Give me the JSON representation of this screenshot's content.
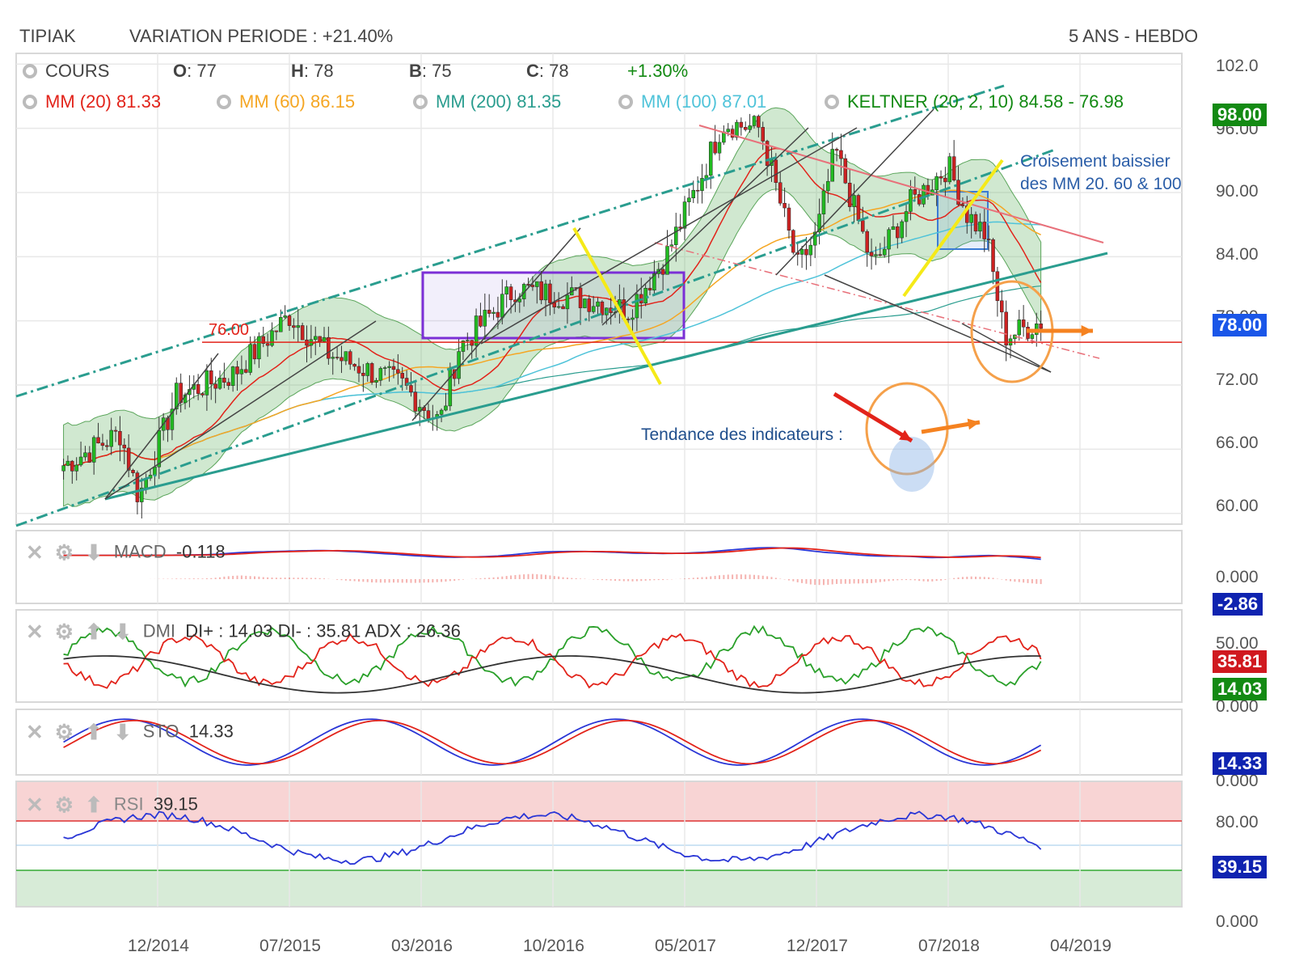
{
  "header": {
    "ticker": "TIPIAK",
    "variation": "VARIATION PERIODE : +21.40%",
    "period": "5 ANS - HEBDO"
  },
  "legend": {
    "cours_label": "COURS",
    "ohlc": [
      {
        "k": "O",
        "v": ": 77"
      },
      {
        "k": "H",
        "v": ": 78"
      },
      {
        "k": "B",
        "v": ": 75"
      },
      {
        "k": "C",
        "v": ": 78"
      }
    ],
    "change": "+1.30%",
    "indicators": [
      {
        "label": "MM (20) 81.33",
        "color": "#e2231a"
      },
      {
        "label": "MM (60) 86.15",
        "color": "#f5a623"
      },
      {
        "label": "MM (200) 81.35",
        "color": "#2a9d8f"
      },
      {
        "label": "MM (100) 87.01",
        "color": "#4fc3d9"
      },
      {
        "label": "KELTNER (20, 2, 10) 84.58 - 76.98",
        "color": "#138a13"
      }
    ]
  },
  "annotations": {
    "support_label": "76.00",
    "crossing_line1": "Croisement baissier",
    "crossing_line2": "des MM 20. 60 & 100",
    "trend_label": "Tendance des indicateurs :"
  },
  "panels": {
    "macd": {
      "name": "MACD",
      "value": "-0.118",
      "badge": "-2.86"
    },
    "dmi": {
      "name": "DMI",
      "value": "DI+ : 14.03 DI- : 35.81 ADX : 26.36",
      "badge_minus": "35.81",
      "badge_plus": "14.03"
    },
    "sto": {
      "name": "STO",
      "value": "14.33",
      "badge": "14.33"
    },
    "rsi": {
      "name": "RSI",
      "value": "39.15",
      "badge": "39.15"
    }
  },
  "axes": {
    "price_ticks": [
      "102.0",
      "96.00",
      "90.00",
      "84.00",
      "78.00",
      "72.00",
      "66.00",
      "60.00"
    ],
    "macd_ticks": [
      "0.000"
    ],
    "dmi_ticks": [
      "50.00",
      "0.000"
    ],
    "sto_ticks": [
      "0.000"
    ],
    "rsi_ticks": [
      "80.00",
      "0.000"
    ],
    "x_ticks": [
      "12/2014",
      "07/2015",
      "03/2016",
      "10/2016",
      "05/2017",
      "12/2017",
      "07/2018",
      "04/2019"
    ],
    "price_badge_high": "98.00",
    "price_badge_last": "78.00"
  },
  "colors": {
    "mm20": "#e2231a",
    "mm60": "#f5a623",
    "mm200": "#2a9d8f",
    "mm100": "#4fc3d9",
    "keltner": "#138a13",
    "candle_up": "#22bb22",
    "candle_down": "#cc2222",
    "badge_green": "#138a13",
    "badge_blue": "#1a56e8",
    "badge_red": "#d0191f",
    "badge_navy": "#0f23b0"
  },
  "chart_data": {
    "type": "candlestick",
    "timeframe": "weekly",
    "y_range": [
      59,
      103
    ],
    "anchors": [
      {
        "x": "07/2014",
        "close": 64.5
      },
      {
        "x": "10/2014",
        "close": 67.5
      },
      {
        "x": "11/2014",
        "close": 61.5
      },
      {
        "x": "01/2015",
        "close": 71.0
      },
      {
        "x": "04/2015",
        "close": 73.0
      },
      {
        "x": "07/2015",
        "close": 78.5
      },
      {
        "x": "09/2015",
        "close": 75.0
      },
      {
        "x": "01/2016",
        "close": 72.0
      },
      {
        "x": "03/2016",
        "close": 68.5
      },
      {
        "x": "04/2016",
        "close": 75.5
      },
      {
        "x": "07/2016",
        "close": 81.0
      },
      {
        "x": "11/2016",
        "close": 80.0
      },
      {
        "x": "01/2017",
        "close": 79.0
      },
      {
        "x": "03/2017",
        "close": 84.0
      },
      {
        "x": "05/2017",
        "close": 92.0
      },
      {
        "x": "06/2017",
        "close": 96.5
      },
      {
        "x": "08/2017",
        "close": 96.0
      },
      {
        "x": "10/2017",
        "close": 83.0
      },
      {
        "x": "11/2017",
        "close": 86.0
      },
      {
        "x": "12/2017",
        "close": 94.0
      },
      {
        "x": "02/2018",
        "close": 83.0
      },
      {
        "x": "04/2018",
        "close": 89.0
      },
      {
        "x": "06/2018",
        "close": 92.5
      },
      {
        "x": "07/2018",
        "close": 88.0
      },
      {
        "x": "08/2018",
        "close": 86.0
      },
      {
        "x": "09/2018",
        "close": 76.5
      },
      {
        "x": "11/2018",
        "close": 78.0
      }
    ],
    "support": 76.0,
    "last": {
      "open": 77,
      "high": 78,
      "low": 75,
      "close": 78
    }
  }
}
